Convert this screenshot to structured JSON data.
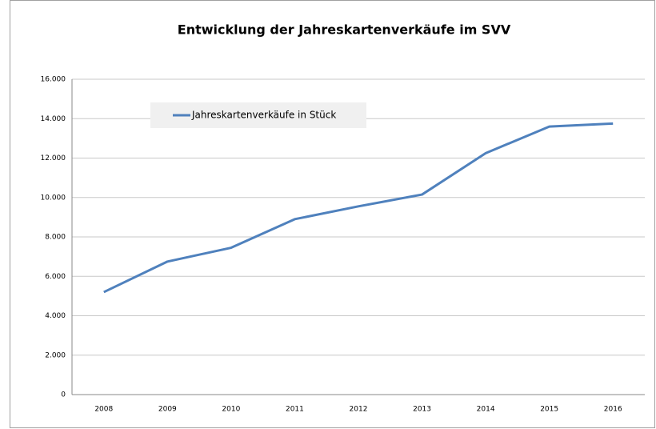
{
  "chart_data": {
    "type": "line",
    "title": "Entwicklung der Jahreskartenverkäufe im SVV",
    "categories": [
      "2008",
      "2009",
      "2010",
      "2011",
      "2012",
      "2013",
      "2014",
      "2015",
      "2016"
    ],
    "series": [
      {
        "name": "Jahreskartenverkäufe in Stück",
        "color": "#4f81bd",
        "values": [
          5200,
          6750,
          7450,
          8900,
          9550,
          10150,
          12250,
          13600,
          13750
        ]
      }
    ],
    "ylim": [
      0,
      16000
    ],
    "yticks": [
      0,
      {
        "value": 2000,
        "label": "2.000"
      },
      {
        "value": 4000,
        "label": "4.000"
      },
      {
        "value": 6000,
        "label": "6.000"
      },
      {
        "value": 8000,
        "label": "8.000"
      },
      {
        "value": 10000,
        "label": "10.000"
      },
      {
        "value": 12000,
        "label": "12.000"
      },
      {
        "value": 14000,
        "label": "14.000"
      },
      {
        "value": 16000,
        "label": "16.000"
      }
    ],
    "grid": true,
    "legend": "top-left"
  }
}
